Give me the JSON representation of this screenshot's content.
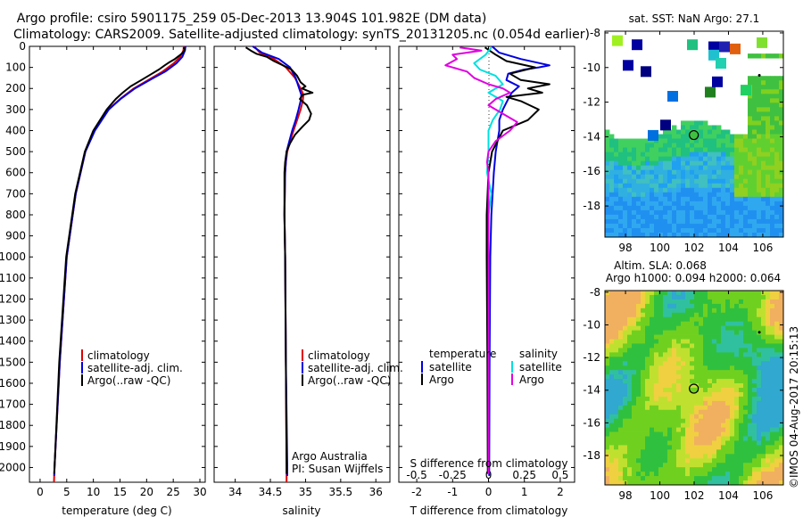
{
  "header": {
    "line1": "Argo profile: csiro 5901175_259 05-Dec-2013 13.904S 101.982E (DM data)",
    "line2": "Climatology: CARS2009. Satellite-adjusted climatology: synTS_20131205.nc (0.054d earlier)"
  },
  "colors": {
    "clim": "#e00000",
    "sat": "#0000e0",
    "argo": "#000000",
    "sal_sat": "#00e0e0",
    "sal_argo": "#e000e0"
  },
  "chart_data": [
    {
      "type": "line",
      "title": "",
      "xlabel": "temperature (deg C)",
      "ylabel": "",
      "xlim": [
        -2,
        31
      ],
      "ylim": [
        2070,
        0
      ],
      "xticks": [
        "0",
        "5",
        "10",
        "15",
        "20",
        "25",
        "30"
      ],
      "xtick_values": [
        0,
        5,
        10,
        15,
        20,
        25,
        30
      ],
      "yticks": [
        "0",
        "100",
        "200",
        "300",
        "400",
        "500",
        "600",
        "700",
        "800",
        "900",
        "1000",
        "1100",
        "1200",
        "1300",
        "1400",
        "1500",
        "1600",
        "1700",
        "1800",
        "1900",
        "2000"
      ],
      "ytick_values": [
        0,
        100,
        200,
        300,
        400,
        500,
        600,
        700,
        800,
        900,
        1000,
        1100,
        1200,
        1300,
        1400,
        1500,
        1600,
        1700,
        1800,
        1900,
        2000
      ],
      "legend": {
        "position": "middle-left",
        "entries": [
          "climatology",
          "satellite-adj. clim.",
          "Argo(..raw -QC)"
        ]
      },
      "series": [
        {
          "name": "climatology",
          "depth": [
            0,
            20,
            50,
            80,
            120,
            150,
            200,
            250,
            300,
            400,
            500,
            700,
            1000,
            1500,
            2000,
            2070
          ],
          "values": [
            27.0,
            26.9,
            26.3,
            25.1,
            23.0,
            21.0,
            17.6,
            15.0,
            12.8,
            10.2,
            8.5,
            6.7,
            5.0,
            3.7,
            2.7,
            2.6
          ]
        },
        {
          "name": "satellite-adj. clim.",
          "depth": [
            0,
            20,
            50,
            80,
            120,
            150,
            200,
            250,
            300,
            400,
            500,
            700,
            1000,
            1500,
            2000,
            2040
          ],
          "values": [
            27.3,
            27.2,
            26.7,
            25.6,
            23.5,
            21.3,
            17.8,
            15.1,
            12.9,
            10.3,
            8.5,
            6.7,
            5.0,
            3.7,
            2.7,
            2.65
          ]
        },
        {
          "name": "Argo(..raw -QC)",
          "depth": [
            5,
            15,
            30,
            45,
            60,
            75,
            90,
            110,
            130,
            160,
            190,
            220,
            250,
            300,
            400,
            500,
            700,
            1000,
            1500,
            2000,
            2030
          ],
          "values": [
            26.9,
            27.2,
            26.8,
            26.1,
            25.3,
            24.3,
            23.4,
            22.3,
            21.0,
            19.0,
            17.0,
            15.5,
            14.2,
            12.5,
            10.0,
            8.4,
            6.6,
            4.9,
            3.6,
            2.7,
            2.65
          ]
        }
      ]
    },
    {
      "type": "line",
      "xlabel": "salinity",
      "xlim": [
        33.7,
        36.2
      ],
      "ylim": [
        2070,
        0
      ],
      "xticks": [
        "34",
        "34.5",
        "35",
        "35.5",
        "36"
      ],
      "xtick_values": [
        34,
        34.5,
        35,
        35.5,
        36
      ],
      "legend": {
        "position": "middle-right",
        "entries": [
          "climatology",
          "satellite-adj. clim.",
          "Argo(..raw -QC)"
        ]
      },
      "annotations": [
        "Argo Australia",
        "PI: Susan Wijffels"
      ],
      "series": [
        {
          "name": "climatology",
          "depth": [
            0,
            30,
            60,
            100,
            150,
            200,
            230,
            260,
            300,
            350,
            400,
            450,
            500,
            550,
            600,
            800,
            1000,
            1500,
            2000,
            2070
          ],
          "values": [
            34.27,
            34.35,
            34.55,
            34.72,
            34.85,
            34.93,
            34.97,
            34.96,
            34.93,
            34.88,
            34.83,
            34.78,
            34.74,
            34.72,
            34.71,
            34.7,
            34.71,
            34.72,
            34.73,
            34.73
          ]
        },
        {
          "name": "satellite-adj. clim.",
          "depth": [
            0,
            30,
            60,
            100,
            150,
            200,
            230,
            260,
            300,
            350,
            400,
            450,
            500,
            550,
            600,
            800,
            1000,
            1500,
            2000,
            2040
          ],
          "values": [
            34.25,
            34.38,
            34.62,
            34.78,
            34.86,
            34.91,
            34.94,
            34.93,
            34.9,
            34.86,
            34.81,
            34.77,
            34.73,
            34.72,
            34.71,
            34.7,
            34.71,
            34.72,
            34.74,
            34.74
          ]
        },
        {
          "name": "Argo(..raw -QC)",
          "depth": [
            5,
            20,
            35,
            50,
            70,
            90,
            110,
            140,
            170,
            190,
            200,
            210,
            220,
            230,
            250,
            280,
            320,
            350,
            380,
            420,
            460,
            500,
            550,
            600,
            800,
            1000,
            1500,
            2000,
            2030
          ],
          "values": [
            34.15,
            34.22,
            34.3,
            34.45,
            34.55,
            34.68,
            34.8,
            34.88,
            34.93,
            35.0,
            34.95,
            35.02,
            35.1,
            34.96,
            34.92,
            35.02,
            35.08,
            35.05,
            34.96,
            34.85,
            34.78,
            34.73,
            34.71,
            34.7,
            34.7,
            34.71,
            34.72,
            34.73,
            34.73
          ]
        }
      ]
    },
    {
      "type": "line",
      "xlabel": "T difference from climatology",
      "xlabel_top": "S difference from climatology",
      "xlim": [
        -2.5,
        2.4
      ],
      "ylim": [
        2070,
        0
      ],
      "xticks": [
        "-2",
        "-1",
        "0",
        "1",
        "2"
      ],
      "xtick_values": [
        -2,
        -1,
        0,
        1,
        2
      ],
      "s_ticks": [
        "-0.5",
        "-0.25",
        "0",
        "0.25",
        "0.5"
      ],
      "s_tick_values": [
        -0.5,
        -0.25,
        0,
        0.25,
        0.5
      ],
      "legend": {
        "temperature_title": "temperature",
        "salinity_title": "salinity",
        "entries": [
          "satellite",
          "Argo",
          "satellite",
          "Argo"
        ]
      },
      "series": [
        {
          "name": "T satellite",
          "depth": [
            0,
            30,
            60,
            90,
            100,
            110,
            130,
            160,
            190,
            220,
            250,
            300,
            350,
            400,
            500,
            600,
            800,
            1000,
            1500,
            2000,
            2040
          ],
          "values": [
            0.1,
            0.3,
            0.9,
            1.7,
            1.4,
            1.0,
            0.55,
            0.5,
            0.85,
            0.65,
            0.55,
            0.4,
            0.3,
            0.3,
            0.2,
            0.15,
            0.08,
            0.05,
            0.03,
            0.02,
            0.02
          ]
        },
        {
          "name": "T Argo",
          "depth": [
            5,
            40,
            70,
            100,
            130,
            160,
            180,
            200,
            220,
            240,
            260,
            300,
            350,
            400,
            500,
            600,
            800,
            1000,
            1500,
            2000,
            2030
          ],
          "values": [
            -0.1,
            0.2,
            0.5,
            1.3,
            0.6,
            0.9,
            1.7,
            1.1,
            1.5,
            0.5,
            0.9,
            1.4,
            1.1,
            0.4,
            0.1,
            0.0,
            -0.05,
            -0.05,
            -0.03,
            -0.02,
            -0.02
          ]
        },
        {
          "name": "S satellite",
          "depth": [
            5,
            40,
            80,
            110,
            140,
            180,
            220,
            260,
            300,
            350,
            400,
            500,
            600,
            700,
            800,
            1000,
            1500,
            2000,
            2030
          ],
          "values": [
            0.02,
            -0.02,
            -0.1,
            -0.06,
            0.05,
            0.1,
            0.0,
            0.1,
            0.08,
            0.03,
            0.0,
            0.0,
            -0.01,
            0.02,
            0.0,
            0.0,
            0.0,
            0.0,
            0.0
          ]
        },
        {
          "name": "S Argo",
          "depth": [
            5,
            20,
            40,
            60,
            90,
            120,
            150,
            180,
            200,
            220,
            250,
            280,
            320,
            360,
            400,
            450,
            500,
            550,
            600,
            700,
            800,
            1000,
            1500,
            2000,
            2030
          ],
          "values": [
            -0.2,
            -0.05,
            -0.25,
            -0.22,
            -0.3,
            -0.15,
            -0.1,
            0.0,
            0.1,
            0.15,
            0.05,
            0.0,
            0.1,
            0.2,
            0.15,
            0.05,
            0.0,
            -0.01,
            0.0,
            0.0,
            0.0,
            0.0,
            0.0,
            0.0,
            0.0
          ]
        }
      ]
    },
    {
      "type": "heatmap",
      "title": "sat. SST: NaN Argo: 27.1",
      "xlim": [
        96.8,
        107.2
      ],
      "ylim": [
        -19.8,
        -7.9
      ],
      "xticks": [
        "98",
        "100",
        "102",
        "104",
        "106"
      ],
      "xtick_values": [
        98,
        100,
        102,
        104,
        106
      ],
      "yticks": [
        "-8",
        "-10",
        "-12",
        "-14",
        "-16",
        "-18"
      ],
      "ytick_values": [
        -8,
        -10,
        -12,
        -14,
        -16,
        -18
      ],
      "argo_position": {
        "lon": 101.982,
        "lat": -13.904
      }
    },
    {
      "type": "heatmap",
      "title_line1": "Altim. SLA: 0.068",
      "title_line2": "Argo h1000: 0.094 h2000: 0.064",
      "xlim": [
        96.8,
        107.2
      ],
      "ylim": [
        -19.8,
        -7.9
      ],
      "xticks": [
        "98",
        "100",
        "102",
        "104",
        "106"
      ],
      "xtick_values": [
        98,
        100,
        102,
        104,
        106
      ],
      "yticks": [
        "-8",
        "-10",
        "-12",
        "-14",
        "-16",
        "-18"
      ],
      "ytick_values": [
        -8,
        -10,
        -12,
        -14,
        -16,
        -18
      ],
      "argo_position": {
        "lon": 101.982,
        "lat": -13.904
      }
    }
  ],
  "footer": {
    "stamp": "©IMOS 04-Aug-2017 20:15:13"
  }
}
